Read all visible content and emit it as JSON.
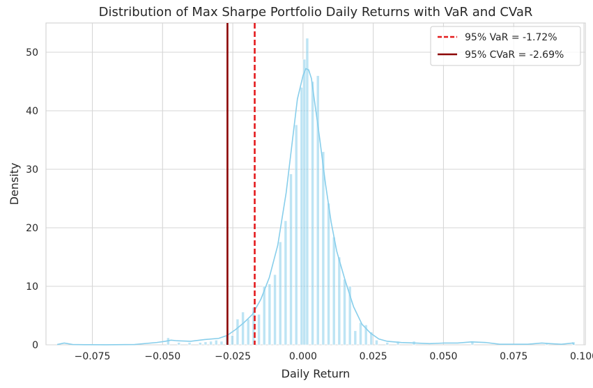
{
  "chart_data": {
    "type": "histogram",
    "title": "Distribution of Max Sharpe Portfolio Daily Returns with VaR and CVaR",
    "xlabel": "Daily Return",
    "ylabel": "Density",
    "xlim": [
      -0.0915,
      0.1005
    ],
    "ylim": [
      0,
      55
    ],
    "x_ticks": [
      -0.075,
      -0.05,
      -0.025,
      0.0,
      0.025,
      0.05,
      0.075,
      0.1
    ],
    "x_tick_labels": [
      "−0.075",
      "−0.050",
      "−0.025",
      "0.000",
      "0.025",
      "0.050",
      "0.075",
      "0.100"
    ],
    "y_ticks": [
      0,
      10,
      20,
      30,
      40,
      50
    ],
    "y_tick_labels": [
      "0",
      "10",
      "20",
      "30",
      "40",
      "50"
    ],
    "grid": true,
    "legend_position": "top-right",
    "histogram": {
      "color": "#87ceeb",
      "bins": [
        {
          "x0": -0.0485,
          "x1": -0.0475,
          "density": 1.2
        },
        {
          "x0": -0.0447,
          "x1": -0.0437,
          "density": 0.4
        },
        {
          "x0": -0.0409,
          "x1": -0.0399,
          "density": 0.4
        },
        {
          "x0": -0.0371,
          "x1": -0.0361,
          "density": 0.4
        },
        {
          "x0": -0.0352,
          "x1": -0.0342,
          "density": 0.5
        },
        {
          "x0": -0.0333,
          "x1": -0.0323,
          "density": 0.6
        },
        {
          "x0": -0.0314,
          "x1": -0.0304,
          "density": 0.8
        },
        {
          "x0": -0.0295,
          "x1": -0.0285,
          "density": 0.6
        },
        {
          "x0": -0.0276,
          "x1": -0.0266,
          "density": 1.6
        },
        {
          "x0": -0.0257,
          "x1": -0.0247,
          "density": 1.6
        },
        {
          "x0": -0.0238,
          "x1": -0.0228,
          "density": 4.4
        },
        {
          "x0": -0.0219,
          "x1": -0.0209,
          "density": 5.6
        },
        {
          "x0": -0.02,
          "x1": -0.019,
          "density": 4.4
        },
        {
          "x0": -0.0181,
          "x1": -0.0171,
          "density": 6.4
        },
        {
          "x0": -0.0162,
          "x1": -0.0152,
          "density": 5.2
        },
        {
          "x0": -0.0143,
          "x1": -0.0133,
          "density": 10.0
        },
        {
          "x0": -0.0124,
          "x1": -0.0114,
          "density": 10.4
        },
        {
          "x0": -0.0105,
          "x1": -0.0095,
          "density": 12.0
        },
        {
          "x0": -0.0086,
          "x1": -0.0076,
          "density": 17.6
        },
        {
          "x0": -0.0067,
          "x1": -0.0057,
          "density": 21.2
        },
        {
          "x0": -0.0048,
          "x1": -0.0038,
          "density": 29.2
        },
        {
          "x0": -0.0029,
          "x1": -0.0019,
          "density": 37.6
        },
        {
          "x0": -0.001,
          "x1": 0.0,
          "density": 44.0
        },
        {
          "x0": 0.0,
          "x1": 0.001,
          "density": 48.8
        },
        {
          "x0": 0.001,
          "x1": 0.002,
          "density": 52.4
        },
        {
          "x0": 0.0029,
          "x1": 0.0039,
          "density": 45.0
        },
        {
          "x0": 0.0048,
          "x1": 0.0058,
          "density": 46.0
        },
        {
          "x0": 0.0067,
          "x1": 0.0077,
          "density": 33.0
        },
        {
          "x0": 0.0086,
          "x1": 0.0096,
          "density": 24.2
        },
        {
          "x0": 0.0105,
          "x1": 0.0115,
          "density": 18.4
        },
        {
          "x0": 0.0124,
          "x1": 0.0134,
          "density": 15.0
        },
        {
          "x0": 0.0143,
          "x1": 0.0153,
          "density": 11.2
        },
        {
          "x0": 0.0162,
          "x1": 0.0172,
          "density": 10.0
        },
        {
          "x0": 0.0181,
          "x1": 0.0191,
          "density": 2.4
        },
        {
          "x0": 0.02,
          "x1": 0.021,
          "density": 3.8
        },
        {
          "x0": 0.0219,
          "x1": 0.0229,
          "density": 3.4
        },
        {
          "x0": 0.0238,
          "x1": 0.0248,
          "density": 2.2
        },
        {
          "x0": 0.0257,
          "x1": 0.0267,
          "density": 0.8
        },
        {
          "x0": 0.0295,
          "x1": 0.0305,
          "density": 0.4
        },
        {
          "x0": 0.0333,
          "x1": 0.0343,
          "density": 0.6
        },
        {
          "x0": 0.039,
          "x1": 0.04,
          "density": 0.6
        },
        {
          "x0": 0.0598,
          "x1": 0.0608,
          "density": 0.6
        },
        {
          "x0": 0.0863,
          "x1": 0.0873,
          "density": 0.3
        },
        {
          "x0": 0.0958,
          "x1": 0.0968,
          "density": 0.5
        }
      ]
    },
    "kde": {
      "color": "#87ceeb",
      "x": [
        -0.0875,
        -0.085,
        -0.082,
        -0.078,
        -0.07,
        -0.06,
        -0.052,
        -0.049,
        -0.047,
        -0.045,
        -0.04,
        -0.035,
        -0.03,
        -0.027,
        -0.024,
        -0.021,
        -0.018,
        -0.015,
        -0.012,
        -0.009,
        -0.006,
        -0.004,
        -0.002,
        0.0,
        0.001,
        0.002,
        0.003,
        0.004,
        0.006,
        0.008,
        0.01,
        0.012,
        0.015,
        0.018,
        0.021,
        0.024,
        0.027,
        0.03,
        0.035,
        0.04,
        0.045,
        0.05,
        0.055,
        0.06,
        0.065,
        0.07,
        0.08,
        0.085,
        0.088,
        0.092,
        0.096,
        0.0965
      ],
      "y": [
        0.05,
        0.3,
        0.05,
        0.02,
        0.01,
        0.05,
        0.4,
        0.6,
        0.8,
        0.7,
        0.6,
        0.9,
        1.1,
        1.6,
        2.6,
        3.8,
        5.2,
        7.8,
        11.5,
        17.0,
        26.0,
        34.0,
        42.0,
        46.0,
        47.2,
        47.0,
        45.5,
        42.0,
        35.0,
        27.5,
        21.0,
        16.0,
        11.0,
        6.5,
        3.5,
        2.0,
        1.0,
        0.6,
        0.4,
        0.3,
        0.2,
        0.3,
        0.3,
        0.5,
        0.4,
        0.1,
        0.1,
        0.3,
        0.2,
        0.1,
        0.3,
        0.05
      ]
    },
    "lines": [
      {
        "name": "95% VaR = -1.72%",
        "x": -0.0172,
        "color": "#e41a1c",
        "style": "dashed"
      },
      {
        "name": "95% CVaR = -2.69%",
        "x": -0.0269,
        "color": "#8b0000",
        "style": "solid"
      }
    ]
  }
}
